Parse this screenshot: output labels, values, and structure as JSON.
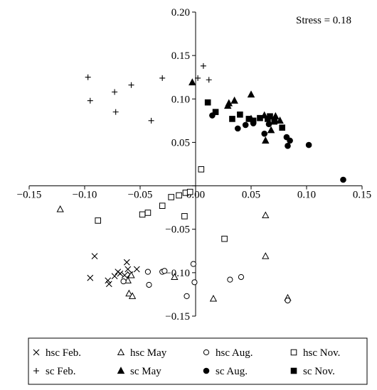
{
  "annotation": "Stress = 0.18",
  "chart_data": {
    "type": "scatter",
    "xlim": [
      -0.15,
      0.15
    ],
    "ylim": [
      -0.15,
      0.2
    ],
    "x_ticks": [
      -0.15,
      -0.1,
      -0.05,
      0.0,
      0.05,
      0.1,
      0.15
    ],
    "y_ticks": [
      0.2,
      0.15,
      0.1,
      0.05,
      0.0,
      -0.05,
      -0.1,
      -0.15
    ],
    "x_tick_labels": [
      "−0.15",
      "−0.10",
      "−0.05",
      "0.00",
      "0.05",
      "0.10",
      "0.15"
    ],
    "y_tick_labels": [
      "0.20",
      "0.15",
      "0.10",
      "0.05",
      "0.00",
      "−0.05",
      "−0.10",
      "−0.15"
    ],
    "axes_cross_at_origin": true,
    "grid": false,
    "legend_position": "bottom",
    "series": [
      {
        "name": "hsc Feb.",
        "marker": "x",
        "points": [
          [
            -0.091,
            -0.081
          ],
          [
            -0.095,
            -0.106
          ],
          [
            -0.079,
            -0.109
          ],
          [
            -0.078,
            -0.113
          ],
          [
            -0.073,
            -0.104
          ],
          [
            -0.07,
            -0.099
          ],
          [
            -0.068,
            -0.101
          ],
          [
            -0.064,
            -0.103
          ],
          [
            -0.062,
            -0.088
          ],
          [
            -0.061,
            -0.096
          ],
          [
            -0.059,
            -0.102
          ],
          [
            -0.053,
            -0.096
          ]
        ]
      },
      {
        "name": "hsc May",
        "marker": "triangle-open",
        "points": [
          [
            -0.122,
            -0.027
          ],
          [
            -0.061,
            -0.109
          ],
          [
            -0.058,
            -0.103
          ],
          [
            -0.06,
            -0.124
          ],
          [
            -0.057,
            -0.127
          ],
          [
            -0.019,
            -0.105
          ],
          [
            0.016,
            -0.13
          ],
          [
            0.063,
            -0.034
          ],
          [
            0.063,
            -0.081
          ],
          [
            0.083,
            -0.129
          ]
        ]
      },
      {
        "name": "hsc Aug.",
        "marker": "circle-open",
        "points": [
          [
            -0.065,
            -0.11
          ],
          [
            -0.043,
            -0.099
          ],
          [
            -0.042,
            -0.114
          ],
          [
            -0.03,
            -0.099
          ],
          [
            -0.028,
            -0.098
          ],
          [
            -0.008,
            -0.127
          ],
          [
            -0.002,
            -0.09
          ],
          [
            -0.001,
            -0.111
          ],
          [
            0.031,
            -0.108
          ],
          [
            0.041,
            -0.105
          ],
          [
            0.083,
            -0.132
          ]
        ]
      },
      {
        "name": "hsc Nov.",
        "marker": "square-open",
        "points": [
          [
            -0.088,
            -0.04
          ],
          [
            -0.048,
            -0.033
          ],
          [
            -0.043,
            -0.031
          ],
          [
            -0.03,
            -0.023
          ],
          [
            -0.022,
            -0.013
          ],
          [
            -0.015,
            -0.011
          ],
          [
            -0.01,
            -0.035
          ],
          [
            -0.009,
            -0.008
          ],
          [
            -0.005,
            -0.007
          ],
          [
            0.005,
            0.019
          ],
          [
            0.026,
            -0.061
          ]
        ]
      },
      {
        "name": "sc Feb.",
        "marker": "plus",
        "points": [
          [
            -0.097,
            0.125
          ],
          [
            -0.095,
            0.098
          ],
          [
            -0.073,
            0.108
          ],
          [
            -0.072,
            0.085
          ],
          [
            -0.058,
            0.116
          ],
          [
            -0.03,
            0.124
          ],
          [
            -0.04,
            0.075
          ],
          [
            0.002,
            0.124
          ],
          [
            0.007,
            0.138
          ],
          [
            0.012,
            0.122
          ]
        ]
      },
      {
        "name": "sc May",
        "marker": "triangle-filled",
        "points": [
          [
            -0.003,
            0.119
          ],
          [
            0.03,
            0.095
          ],
          [
            0.029,
            0.092
          ],
          [
            0.035,
            0.098
          ],
          [
            0.05,
            0.105
          ],
          [
            0.05,
            0.077
          ],
          [
            0.062,
            0.081
          ],
          [
            0.063,
            0.052
          ],
          [
            0.068,
            0.064
          ],
          [
            0.072,
            0.08
          ],
          [
            0.076,
            0.075
          ]
        ]
      },
      {
        "name": "sc Aug.",
        "marker": "circle-filled",
        "points": [
          [
            0.015,
            0.081
          ],
          [
            0.038,
            0.066
          ],
          [
            0.045,
            0.07
          ],
          [
            0.052,
            0.072
          ],
          [
            0.062,
            0.06
          ],
          [
            0.066,
            0.071
          ],
          [
            0.082,
            0.056
          ],
          [
            0.085,
            0.052
          ],
          [
            0.083,
            0.046
          ],
          [
            0.102,
            0.047
          ],
          [
            0.133,
            0.007
          ]
        ]
      },
      {
        "name": "sc Nov.",
        "marker": "square-filled",
        "points": [
          [
            0.011,
            0.096
          ],
          [
            0.018,
            0.085
          ],
          [
            0.033,
            0.077
          ],
          [
            0.04,
            0.082
          ],
          [
            0.048,
            0.077
          ],
          [
            0.052,
            0.075
          ],
          [
            0.058,
            0.078
          ],
          [
            0.065,
            0.077
          ],
          [
            0.067,
            0.08
          ],
          [
            0.071,
            0.074
          ],
          [
            0.078,
            0.067
          ]
        ]
      }
    ]
  }
}
